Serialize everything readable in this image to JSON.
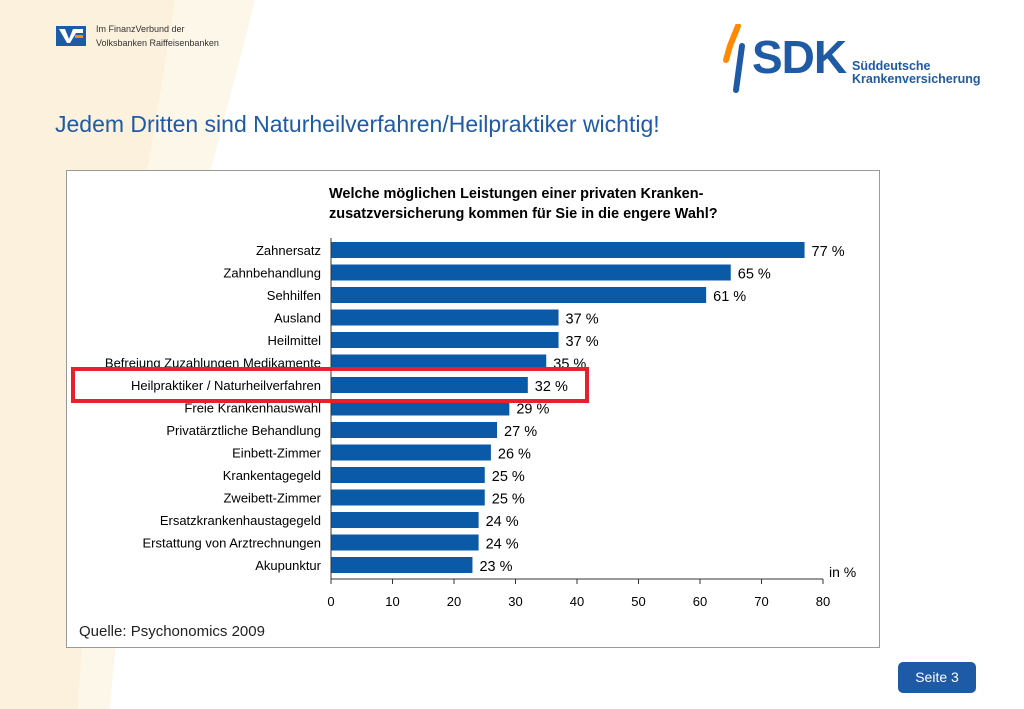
{
  "header": {
    "vr_line1": "Im FinanzVerbund der",
    "vr_line2": "Volksbanken Raiffeisenbanken",
    "sdk_word": "SDK",
    "sdk_sub1": "Süddeutsche",
    "sdk_sub2": "Krankenversicherung"
  },
  "title": "Jedem Dritten sind Naturheilverfahren/Heilpraktiker wichtig!",
  "footer": {
    "page_label": "Seite 3"
  },
  "colors": {
    "brand": "#1f5aa6",
    "bar": "#0a5aa8",
    "highlight": "#e8202a"
  },
  "chart_data": {
    "type": "bar",
    "orientation": "horizontal",
    "title_line1": "Welche möglichen Leistungen einer privaten Kranken-",
    "title_line2": "zusatzversicherung kommen für Sie in die engere Wahl?",
    "categories": [
      "Zahnersatz",
      "Zahnbehandlung",
      "Sehhilfen",
      "Ausland",
      "Heilmittel",
      "Befreiung Zuzahlungen Medikamente",
      "Heilpraktiker / Naturheilverfahren",
      "Freie Krankenhauswahl",
      "Privatärztliche Behandlung",
      "Einbett-Zimmer",
      "Krankentagegeld",
      "Zweibett-Zimmer",
      "Ersatzkrankenhaustagegeld",
      "Erstattung von Arztrechnungen",
      "Akupunktur"
    ],
    "values": [
      77,
      65,
      61,
      37,
      37,
      35,
      32,
      29,
      27,
      26,
      25,
      25,
      24,
      24,
      23
    ],
    "value_labels": [
      "77 %",
      "65 %",
      "61 %",
      "37 %",
      "37 %",
      "35 %",
      "32 %",
      "29 %",
      "27 %",
      "26 %",
      "25 %",
      "25 %",
      "24 %",
      "24 %",
      "23 %"
    ],
    "highlight_category": "Heilpraktiker / Naturheilverfahren",
    "xlabel": "in %",
    "xlim": [
      0,
      80
    ],
    "xticks": [
      "0",
      "10",
      "20",
      "30",
      "40",
      "50",
      "60",
      "70",
      "80"
    ],
    "source": "Quelle: Psychonomics 2009",
    "grid": false,
    "legend": "none"
  }
}
